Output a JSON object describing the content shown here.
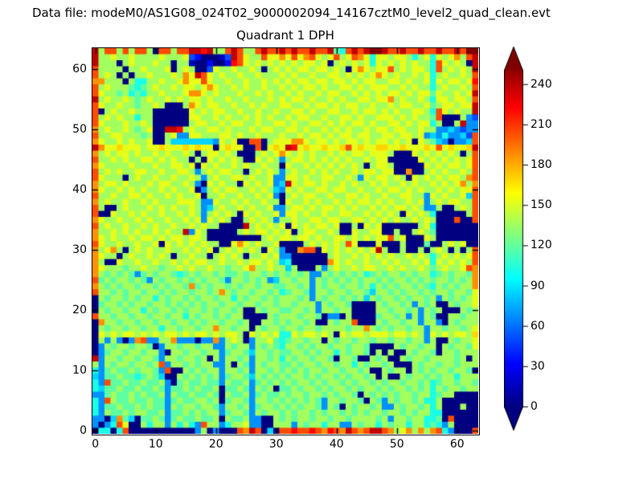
{
  "header": {
    "data_file_label": "Data file: modeM0/AS1G08_024T02_9000002094_14167cztM0_level2_quad_clean.evt"
  },
  "chart_data": {
    "type": "heatmap",
    "title": "Quadrant 1 DPH",
    "xlabel": "",
    "ylabel": "",
    "x_range": [
      0,
      64
    ],
    "y_range": [
      0,
      64
    ],
    "x_ticks": [
      0,
      10,
      20,
      30,
      40,
      50,
      60
    ],
    "y_ticks": [
      0,
      10,
      20,
      30,
      40,
      50,
      60
    ],
    "grid": "off",
    "colormap": "jet",
    "colorbar": {
      "ticks": [
        0,
        30,
        60,
        90,
        120,
        150,
        180,
        210,
        240
      ],
      "vmin": 0,
      "vmax": 250,
      "extend": "both",
      "position": "right"
    },
    "value_encoding": {
      "note": "each char 0-f is one detector pixel; value = hexdigit * 17 counts",
      "value_per_step": 17
    },
    "row_order_note": "first row string is y=63 (top of plot), last row string is y=0 (bottom)",
    "grid_rows_top_to_bottom": [
      "e8cc8c8cc80cc8cceede88cec88ceccececcecce76ceceffecceccecceccecff",
      "e8898898888988893200013ec988c99b9c9bc989c89cb969989986896989b8ce",
      "e8880898889880881002002dc98989898989989089898969898989886c98980e",
      "c8888088988890898003988988980898989989989809b9899c8989986c89898e",
      "c89808088988898b9ec9898898898889898898899898989b989889896898898c",
      "bb8880866889889b99c98898898898989899899899898998899898896989989d",
      "c898887678988989989b9889898898898989989889989899988989886898898c",
      "c988786768898889bb989888988989889898898998898989899898997988989e",
      "e898898789889898998988988988898989989889898899899b8988986998998c",
      "c988988788980008b98998898898988998898998989988988989988978 99899e",
      "c089889888000000989899889889889889989889988989989898899 86c98988e",
      "c89898868800000099889898898989889899889889989889998989887c000843",
      "c98889889800000089988989988988998988998989899898899898 9968008e44",
      "b89889878900eed898899898889899889989889898988989989988 9884454344",
      "c88998887800894499888998988988898898998989989988998998945464453c",
      "b9889898890085555555498900cc08999bb9899898998989989890987540445c",
      "eb99a999899a999a9a9909a9900c09a9ed9a99a99ac9a99aa99a999a9c9a99ae",
      "b898998988989889808998980008989b9898988989899899980009898989808c",
      "c88989889989898808098989800989848998989898988989900000989898989c",
      "b9888898889889989098988989889880988989898989808998000009 8989989c",
      "c89898899889889984898998808989848988989898898998990 0b0089898898c",
      "c98880898898898898489889989889449989889988984989989809 89898998bc",
      "b8998988898998898409898809898945e9899898898988989889898898989b8b",
      "b98898989889898890489899889898549898899899889889899898988989899c",
      "c88988998988989889088988988989408989988988998988988998849898895c",
      "b89889889898889998449889898898809889898898989989898898948989988c",
      "c80089888989898898458988989889448998989989898898989989844800898c",
      "c00988989889889898489898098988949989889889988989898098986000008c",
      "b98898898988988989498980089898488988998998899898989889898000c00c",
      "c898898898988988989880000e8989890989899890080989000000 8960000000",
      "b88989898898988e49800000898998989089988980098899008008 9870000000",
      "b98988989989899899800000000089899899898899898989 9c89000980000000",
      "c98898898890989898988009b98988900008989898c900090008000700898900",
      "b89b8089898898898989089898980984 00bcc0989898989e800800808980808c",
      "b98808988989808898808989808898944000000898898989898898986898989c",
      "b80098898898898989988988989989856000000b98988988989889896989898c",
      "b9888788988788989889887889b889885800084898898 99889898898789889cb",
      "b8787874787887678788787787887878787844878787867878 8787886787887b",
      "c7878878748788787878874887878458878848787878788 7878878787887878b",
      "b878788788787887b787887878878877887848788788786 8787887876878788b",
      "c88787887887878878878b87887887867887488788788758878788 7878878879",
      "0878878788687887878878868788787888784878878785878878788 784878789",
      "0788787887887878787887887887887887888487887000087887848780087889",
      "0878878868788787887878878008788778878488788000088788784878000878",
      "c887887887887886878878788000087888788704408000078878484870088788",
      "0b887887887887887878878878008878788780087 88c00087887884884087888",
      "08788788788688788788b887880878878878878888788b878788788488788789",
      "0989899898989989899898998098989669899898098998 99989989849898998a",
      "0848404bc4488b444044b489804889767887880878878878878878 8480087889",
      "0487887887048878878844878848787688787887887887000087887880878879",
      "047887887884088788788478875887877887878868788708080087 8870887888",
      "e48878878874887887808488784887868788788708870087800878 8788887808",
      "84878878878c4887878844808748788778788788788687887800087887887888",
      "647877878874c00878788488784887878787887887887800878808 7878878870",
      "547787767875008787878478875878787887878878788780800878 8787886888",
      "64c77877877840787787748778478787878878788787887878878 87867887887",
      "65778778778747787877807787487807787887878878788787887 87868788788",
      "44787787877848778778708778478778788788787887087878788 78867880000",
      "64c87787787747877887807887488787878787488788708748788 78668000000",
      "647787787877487887887488784788787878874870878878448788 7868000800",
      "64877878877847787878847887487887878878788787878878878 78866000000",
      "4405b750778747877877808778440087878878878878888784887886670c0000",
      "4046c9008688486864c88468894400888487886884487886878868 8676480000",
      "06606c000000000004804000cbec050ccdccdcbdcbecbceecb89b8b8bc64000c"
    ]
  }
}
